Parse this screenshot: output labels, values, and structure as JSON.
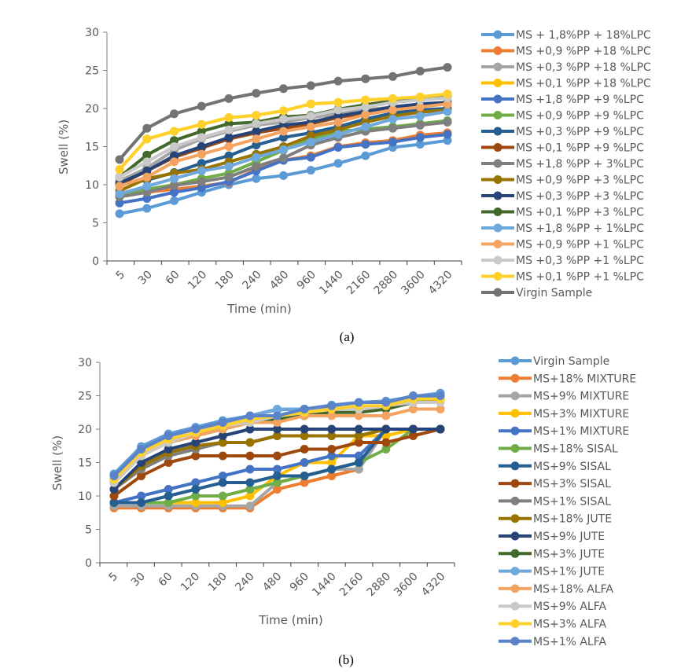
{
  "chart_data": [
    {
      "id": "a",
      "type": "line",
      "caption": "(a)",
      "title": "",
      "xlabel": "Time (min)",
      "ylabel": "Swell (%)",
      "ylim": [
        0,
        30
      ],
      "yticks": [
        "0",
        "5",
        "10",
        "15",
        "20",
        "25",
        "30"
      ],
      "categories": [
        "5",
        "30",
        "60",
        "120",
        "180",
        "240",
        "480",
        "960",
        "1440",
        "2160",
        "2880",
        "3600",
        "4320"
      ],
      "grid": false,
      "legend_position": "right",
      "series": [
        {
          "name": "MS + 1,8%PP + 18%LPC",
          "color": "#5B9BD5",
          "values": [
            6.2,
            6.9,
            7.9,
            9.0,
            10.0,
            10.8,
            11.2,
            11.9,
            12.8,
            13.8,
            14.9,
            15.3,
            15.8
          ]
        },
        {
          "name": "MS +0,9 %PP +18 %LPC",
          "color": "#ED7D31",
          "values": [
            8.5,
            9.0,
            9.4,
            9.8,
            10.3,
            12.0,
            13.2,
            13.8,
            15.0,
            15.5,
            15.8,
            16.5,
            16.8
          ]
        },
        {
          "name": "MS +0,3 %PP +18 %LPC",
          "color": "#A5A5A5",
          "values": [
            10.5,
            12.2,
            14.5,
            16.0,
            17.0,
            17.8,
            18.2,
            18.8,
            19.3,
            19.8,
            20.2,
            20.5,
            20.8
          ]
        },
        {
          "name": "MS +0,1 %PP +18 %LPC",
          "color": "#FFC000",
          "values": [
            12.0,
            16.0,
            17.0,
            17.9,
            18.8,
            19.1,
            19.7,
            20.6,
            20.8,
            21.1,
            21.3,
            21.5,
            21.9
          ]
        },
        {
          "name": "MS +1,8 %PP +9 %LPC",
          "color": "#4472C4",
          "values": [
            7.6,
            8.2,
            9.0,
            9.6,
            10.4,
            11.8,
            13.2,
            13.6,
            14.9,
            15.3,
            15.6,
            16.2,
            16.6
          ]
        },
        {
          "name": "MS +0,9 %PP +9 %LPC",
          "color": "#70AD47",
          "values": [
            8.6,
            9.4,
            10.0,
            10.8,
            11.5,
            13.0,
            14.5,
            16.0,
            17.0,
            17.3,
            17.6,
            18.0,
            18.4
          ]
        },
        {
          "name": "MS +0,3 %PP +9 %LPC",
          "color": "#255E91",
          "values": [
            10.0,
            10.6,
            11.6,
            12.8,
            13.8,
            15.2,
            16.2,
            16.8,
            17.6,
            18.6,
            19.4,
            19.8,
            20.0
          ]
        },
        {
          "name": "MS +0,1 %PP +9 %LPC",
          "color": "#9E480E",
          "values": [
            10.0,
            11.8,
            13.6,
            14.8,
            16.0,
            16.8,
            17.4,
            18.0,
            18.8,
            19.4,
            20.0,
            20.4,
            20.6
          ]
        },
        {
          "name": "MS +1,8 %PP + 3%LPC",
          "color": "#7F7F7F",
          "values": [
            8.4,
            9.0,
            9.9,
            10.4,
            11.0,
            12.4,
            13.5,
            15.2,
            16.2,
            17.0,
            17.4,
            17.8,
            18.2
          ]
        },
        {
          "name": "MS +0,9 %PP +3 %LPC",
          "color": "#997300",
          "values": [
            9.2,
            10.8,
            11.5,
            12.0,
            13.0,
            14.0,
            15.0,
            16.4,
            17.2,
            18.2,
            19.0,
            19.5,
            19.8
          ]
        },
        {
          "name": "MS +0,3 %PP +3 %LPC",
          "color": "#264478",
          "values": [
            10.2,
            11.8,
            13.8,
            15.0,
            16.2,
            17.0,
            17.8,
            18.2,
            19.0,
            19.6,
            20.2,
            20.6,
            20.8
          ]
        },
        {
          "name": "MS +0,1 %PP +3 %LPC",
          "color": "#43682B",
          "values": [
            11.0,
            13.9,
            15.8,
            17.0,
            18.0,
            18.2,
            18.9,
            19.1,
            19.9,
            20.5,
            21.0,
            21.3,
            21.6
          ]
        },
        {
          "name": "MS +1,8 %PP + 1%LPC",
          "color": "#6FA8DC",
          "values": [
            8.8,
            9.8,
            10.8,
            11.8,
            12.4,
            13.6,
            14.6,
            15.6,
            16.6,
            17.6,
            18.6,
            19.0,
            19.6
          ]
        },
        {
          "name": "MS +0,9 %PP +1 %LPC",
          "color": "#F4A460",
          "values": [
            9.8,
            11.0,
            13.0,
            14.0,
            15.0,
            16.0,
            17.0,
            17.6,
            18.2,
            19.2,
            19.8,
            20.2,
            20.6
          ]
        },
        {
          "name": "MS +0,3 %PP +1 %LPC",
          "color": "#C9C9C9",
          "values": [
            11.0,
            13.0,
            15.0,
            16.2,
            17.2,
            18.0,
            18.6,
            19.0,
            19.8,
            20.2,
            20.8,
            21.1,
            21.4
          ]
        },
        {
          "name": "MS +0,1 %PP +1 %LPC",
          "color": "#FFD02A",
          "values": [
            12.0,
            16.0,
            17.0,
            17.9,
            18.8,
            19.1,
            19.7,
            20.6,
            20.8,
            21.1,
            21.3,
            21.5,
            21.9
          ]
        },
        {
          "name": "Virgin Sample",
          "color": "#737373",
          "values": [
            13.3,
            17.4,
            19.3,
            20.3,
            21.3,
            22.0,
            22.6,
            23.0,
            23.6,
            23.9,
            24.2,
            24.9,
            25.4
          ]
        }
      ]
    },
    {
      "id": "b",
      "type": "line",
      "caption": "(b)",
      "title": "",
      "xlabel": "Time (min)",
      "ylabel": "Swell (%)",
      "ylim": [
        0,
        30
      ],
      "yticks": [
        "0",
        "5",
        "10",
        "15",
        "20",
        "25",
        "30"
      ],
      "categories": [
        "5",
        "30",
        "60",
        "120",
        "180",
        "240",
        "480",
        "960",
        "1440",
        "2160",
        "2880",
        "3600",
        "4320"
      ],
      "grid": false,
      "legend_position": "right",
      "series": [
        {
          "name": "Virgin Sample",
          "color": "#5B9BD5",
          "values": [
            13.3,
            17.4,
            19.3,
            20.3,
            21.3,
            22.0,
            22.9,
            23.0,
            23.6,
            24.0,
            24.2,
            24.9,
            25.4
          ]
        },
        {
          "name": "MS+18% MIXTURE",
          "color": "#ED7D31",
          "values": [
            8.2,
            8.2,
            8.2,
            8.2,
            8.2,
            8.2,
            11.0,
            12.0,
            13.0,
            14.0,
            20.0,
            20.0,
            20.0
          ]
        },
        {
          "name": "MS+9% MIXTURE",
          "color": "#A5A5A5",
          "values": [
            8.5,
            8.5,
            8.5,
            8.5,
            8.5,
            8.5,
            12.0,
            13.0,
            14.0,
            14.0,
            20.0,
            20.0,
            20.0
          ]
        },
        {
          "name": "MS+3% MIXTURE",
          "color": "#FFC000",
          "values": [
            9.0,
            9.0,
            9.0,
            9.0,
            9.0,
            10.0,
            13.0,
            15.0,
            15.0,
            19.0,
            19.0,
            20.0,
            20.0
          ]
        },
        {
          "name": "MS+1% MIXTURE",
          "color": "#4472C4",
          "values": [
            9.0,
            10.0,
            11.0,
            12.0,
            13.0,
            14.0,
            14.0,
            15.0,
            16.0,
            16.0,
            20.0,
            20.0,
            20.0
          ]
        },
        {
          "name": "MS+18% SISAL",
          "color": "#70AD47",
          "values": [
            9.0,
            9.0,
            9.0,
            10.0,
            10.0,
            11.0,
            12.0,
            13.0,
            14.0,
            15.0,
            17.0,
            20.0,
            20.0
          ]
        },
        {
          "name": "MS+9% SISAL",
          "color": "#255E91",
          "values": [
            9.0,
            9.0,
            10.0,
            11.0,
            12.0,
            12.0,
            13.0,
            13.0,
            14.0,
            15.0,
            20.0,
            20.0,
            20.0
          ]
        },
        {
          "name": "MS+3% SISAL",
          "color": "#9E480E",
          "values": [
            10.0,
            13.0,
            15.0,
            16.0,
            16.0,
            16.0,
            16.0,
            17.0,
            17.0,
            18.0,
            18.0,
            19.0,
            20.0
          ]
        },
        {
          "name": "MS+1% SISAL",
          "color": "#7F7F7F",
          "values": [
            11.0,
            14.0,
            16.0,
            17.0,
            18.0,
            18.0,
            19.0,
            19.0,
            19.0,
            19.0,
            20.0,
            20.0,
            20.0
          ]
        },
        {
          "name": "MS+18% JUTE",
          "color": "#997300",
          "values": [
            11.0,
            14.5,
            16.5,
            17.5,
            18.0,
            18.0,
            19.0,
            19.0,
            19.0,
            19.0,
            20.0,
            20.0,
            20.0
          ]
        },
        {
          "name": "MS+9% JUTE",
          "color": "#264478",
          "values": [
            11.0,
            15.0,
            17.0,
            18.0,
            19.0,
            20.0,
            20.0,
            20.0,
            20.0,
            20.0,
            20.0,
            20.0,
            20.0
          ]
        },
        {
          "name": "MS+3% JUTE",
          "color": "#43682B",
          "values": [
            12.0,
            16.0,
            18.0,
            19.0,
            20.0,
            21.0,
            21.5,
            22.0,
            22.5,
            22.5,
            23.0,
            24.0,
            24.5
          ]
        },
        {
          "name": "MS+1% JUTE",
          "color": "#6FA8DC",
          "values": [
            12.5,
            17.0,
            19.0,
            20.0,
            21.0,
            22.0,
            23.0,
            23.0,
            23.5,
            24.0,
            24.0,
            24.5,
            25.0
          ]
        },
        {
          "name": "MS+18% ALFA",
          "color": "#F4A460",
          "values": [
            12.0,
            16.0,
            18.0,
            19.0,
            20.0,
            21.0,
            21.0,
            22.0,
            22.0,
            22.0,
            22.0,
            23.0,
            23.0
          ]
        },
        {
          "name": "MS+9% ALFA",
          "color": "#C9C9C9",
          "values": [
            12.0,
            16.0,
            18.0,
            19.5,
            20.5,
            21.0,
            22.0,
            22.5,
            23.0,
            23.0,
            23.5,
            24.0,
            24.0
          ]
        },
        {
          "name": "MS+3% ALFA",
          "color": "#FFD02A",
          "values": [
            12.5,
            16.5,
            18.5,
            19.5,
            20.5,
            21.5,
            22.0,
            22.5,
            23.0,
            23.5,
            23.5,
            24.5,
            24.5
          ]
        },
        {
          "name": "MS+1% ALFA",
          "color": "#5B83C9",
          "values": [
            13.0,
            17.0,
            19.0,
            20.0,
            21.0,
            22.0,
            22.0,
            23.0,
            23.5,
            24.0,
            24.0,
            25.0,
            25.0
          ]
        }
      ]
    }
  ]
}
